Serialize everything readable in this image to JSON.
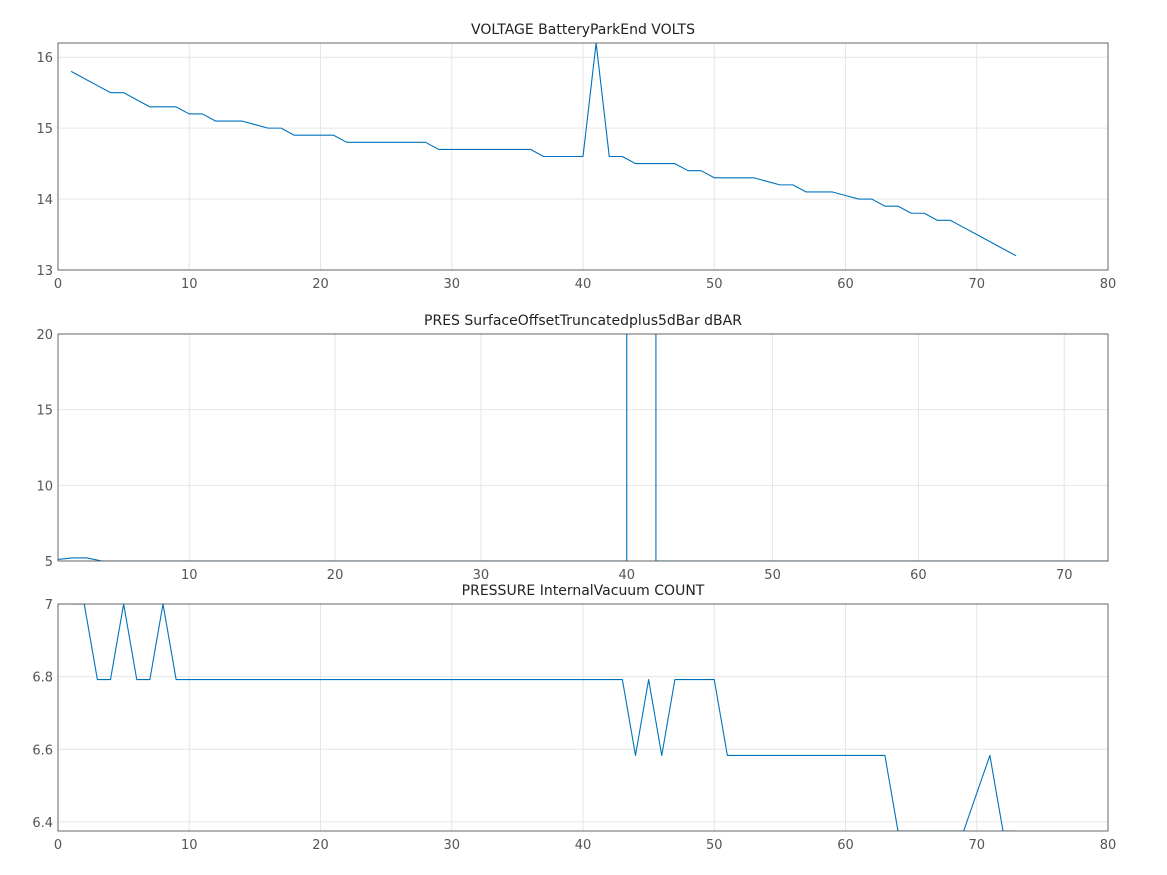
{
  "chart_data": [
    {
      "type": "line",
      "title": "VOLTAGE BatteryParkEnd VOLTS",
      "xlim": [
        0,
        80
      ],
      "ylim": [
        13,
        16.2
      ],
      "xticks": [
        0,
        10,
        20,
        30,
        40,
        50,
        60,
        70,
        80
      ],
      "yticks": [
        13,
        14,
        15,
        16
      ],
      "xtick_labels": [
        "0",
        "10",
        "20",
        "30",
        "40",
        "50",
        "60",
        "70",
        "80"
      ],
      "ytick_labels": [
        "13",
        "14",
        "15",
        "16"
      ],
      "grid": true,
      "color": "#0072bd",
      "x": [
        1,
        2,
        3,
        4,
        5,
        6,
        7,
        8,
        9,
        10,
        11,
        12,
        13,
        14,
        15,
        16,
        17,
        18,
        19,
        20,
        21,
        22,
        23,
        24,
        25,
        26,
        27,
        28,
        29,
        30,
        31,
        32,
        33,
        34,
        35,
        36,
        37,
        38,
        39,
        40,
        41,
        42,
        43,
        44,
        45,
        46,
        47,
        48,
        49,
        50,
        51,
        52,
        53,
        54,
        55,
        56,
        57,
        58,
        59,
        60,
        61,
        62,
        63,
        64,
        65,
        66,
        67,
        68,
        69,
        70,
        71,
        72,
        73
      ],
      "y": [
        15.8,
        15.7,
        15.6,
        15.5,
        15.5,
        15.4,
        15.3,
        15.3,
        15.3,
        15.2,
        15.2,
        15.1,
        15.1,
        15.1,
        15.05,
        15.0,
        15.0,
        14.9,
        14.9,
        14.9,
        14.9,
        14.8,
        14.8,
        14.8,
        14.8,
        14.8,
        14.8,
        14.8,
        14.7,
        14.7,
        14.7,
        14.7,
        14.7,
        14.7,
        14.7,
        14.7,
        14.6,
        14.6,
        14.6,
        14.6,
        16.2,
        14.6,
        14.6,
        14.5,
        14.5,
        14.5,
        14.5,
        14.4,
        14.4,
        14.3,
        14.3,
        14.3,
        14.3,
        14.25,
        14.2,
        14.2,
        14.1,
        14.1,
        14.1,
        14.05,
        14.0,
        14.0,
        13.9,
        13.9,
        13.8,
        13.8,
        13.7,
        13.7,
        13.6,
        13.5,
        13.4,
        13.3,
        13.2
      ]
    },
    {
      "type": "line",
      "title": "PRES SurfaceOffsetTruncatedplus5dBar dBAR",
      "xlim": [
        1,
        73
      ],
      "ylim": [
        5,
        20
      ],
      "xticks": [
        10,
        20,
        30,
        40,
        50,
        60,
        70
      ],
      "yticks": [
        5,
        10,
        15,
        20
      ],
      "xtick_labels": [
        "10",
        "20",
        "30",
        "40",
        "50",
        "60",
        "70"
      ],
      "ytick_labels": [
        "5",
        "10",
        "15",
        "20"
      ],
      "grid": true,
      "color": "#0072bd",
      "x": [
        1,
        2,
        3,
        4,
        5,
        10,
        20,
        30,
        39,
        40,
        40,
        42,
        42,
        43,
        50,
        60,
        70,
        73
      ],
      "y": [
        5.1,
        5.2,
        5.2,
        5.0,
        5.0,
        5.0,
        5.0,
        5.0,
        5.0,
        5.0,
        20.5,
        20.5,
        5.0,
        5.0,
        5.0,
        5.0,
        5.0,
        5.0
      ]
    },
    {
      "type": "line",
      "title": "PRESSURE InternalVacuum COUNT",
      "xlim": [
        0,
        80
      ],
      "ylim": [
        6.375,
        7.0
      ],
      "xticks": [
        0,
        10,
        20,
        30,
        40,
        50,
        60,
        70,
        80
      ],
      "yticks": [
        6.4,
        6.6,
        6.8,
        7.0
      ],
      "xtick_labels": [
        "0",
        "10",
        "20",
        "30",
        "40",
        "50",
        "60",
        "70",
        "80"
      ],
      "ytick_labels": [
        "6.4",
        "6.6",
        "6.8",
        "7"
      ],
      "grid": true,
      "color": "#0072bd",
      "x": [
        1,
        2,
        3,
        4,
        5,
        6,
        7,
        8,
        9,
        10,
        20,
        30,
        40,
        43,
        44,
        45,
        46,
        47,
        48,
        49,
        50,
        51,
        55,
        60,
        63,
        64,
        65,
        66,
        67,
        68,
        69,
        70,
        71,
        72,
        73
      ],
      "y": [
        7.0,
        7.0,
        6.792,
        6.792,
        7.0,
        6.792,
        6.792,
        7.0,
        6.792,
        6.792,
        6.792,
        6.792,
        6.792,
        6.792,
        6.583,
        6.792,
        6.583,
        6.792,
        6.792,
        6.792,
        6.792,
        6.583,
        6.583,
        6.583,
        6.583,
        6.375,
        6.375,
        6.375,
        6.375,
        6.375,
        6.375,
        6.479,
        6.583,
        6.375,
        6.375
      ]
    }
  ]
}
